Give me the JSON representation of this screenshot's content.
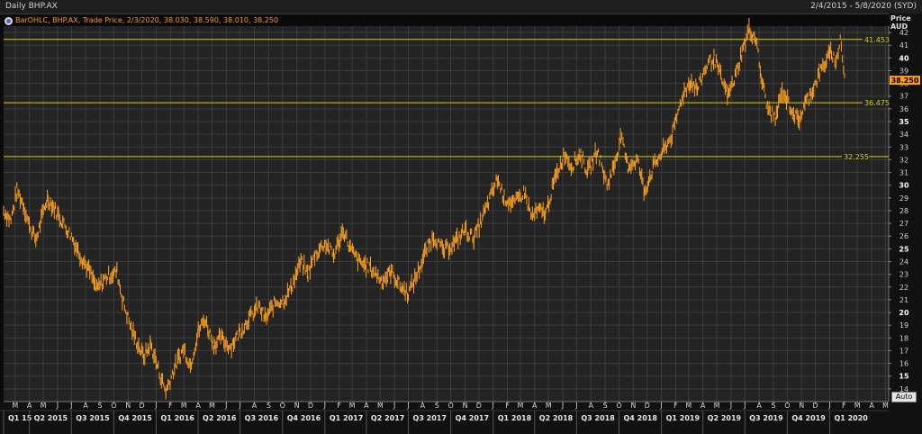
{
  "window": {
    "title": "Daily BHP.AX",
    "date_range": "2/4/2015 - 5/8/2020 (SYD)"
  },
  "legend": {
    "text": "BarOHLC, BHP.AX, Trade Price, 2/3/2020, 38.030, 38.590, 38.010, 38.250"
  },
  "axis": {
    "price_label": "Price",
    "currency_label": "AUD",
    "auto_button": "Auto"
  },
  "colors": {
    "background": "#232323",
    "grid": "#3c3c3c",
    "price_series": "#ffa21c",
    "hlines": "#d8d000",
    "current_price_box": "#ff9d17"
  },
  "chart_data": {
    "type": "bar",
    "subtype": "ohlc",
    "series_name": "BHP.AX",
    "ylabel": "Price AUD",
    "ylim": [
      13,
      42.5
    ],
    "yticks": [
      14,
      15,
      16,
      17,
      18,
      19,
      20,
      21,
      22,
      23,
      24,
      25,
      26,
      27,
      28,
      29,
      30,
      31,
      32,
      33,
      34,
      35,
      36,
      37,
      38,
      39,
      40,
      41,
      42
    ],
    "xlim": [
      "2015-02-04",
      "2020-05-08"
    ],
    "grid": true,
    "month_labels": [
      {
        "date": "2015-03-01",
        "label": "M"
      },
      {
        "date": "2015-04-01",
        "label": "A"
      },
      {
        "date": "2015-05-01",
        "label": "M"
      },
      {
        "date": "2015-06-01",
        "label": "J"
      },
      {
        "date": "2015-07-01",
        "label": "J"
      },
      {
        "date": "2015-08-01",
        "label": "A"
      },
      {
        "date": "2015-09-01",
        "label": "S"
      },
      {
        "date": "2015-10-01",
        "label": "O"
      },
      {
        "date": "2015-11-01",
        "label": "N"
      },
      {
        "date": "2015-12-01",
        "label": "D"
      },
      {
        "date": "2016-01-01",
        "label": "J"
      },
      {
        "date": "2016-02-01",
        "label": "F"
      },
      {
        "date": "2016-03-01",
        "label": "M"
      },
      {
        "date": "2016-04-01",
        "label": "A"
      },
      {
        "date": "2016-05-01",
        "label": "M"
      },
      {
        "date": "2016-06-01",
        "label": "J"
      },
      {
        "date": "2016-07-01",
        "label": "J"
      },
      {
        "date": "2016-08-01",
        "label": "A"
      },
      {
        "date": "2016-09-01",
        "label": "S"
      },
      {
        "date": "2016-10-01",
        "label": "O"
      },
      {
        "date": "2016-11-01",
        "label": "N"
      },
      {
        "date": "2016-12-01",
        "label": "D"
      },
      {
        "date": "2017-01-01",
        "label": "J"
      },
      {
        "date": "2017-02-01",
        "label": "F"
      },
      {
        "date": "2017-03-01",
        "label": "M"
      },
      {
        "date": "2017-04-01",
        "label": "A"
      },
      {
        "date": "2017-05-01",
        "label": "M"
      },
      {
        "date": "2017-06-01",
        "label": "J"
      },
      {
        "date": "2017-07-01",
        "label": "J"
      },
      {
        "date": "2017-08-01",
        "label": "A"
      },
      {
        "date": "2017-09-01",
        "label": "S"
      },
      {
        "date": "2017-10-01",
        "label": "O"
      },
      {
        "date": "2017-11-01",
        "label": "N"
      },
      {
        "date": "2017-12-01",
        "label": "D"
      },
      {
        "date": "2018-01-01",
        "label": "J"
      },
      {
        "date": "2018-02-01",
        "label": "F"
      },
      {
        "date": "2018-03-01",
        "label": "M"
      },
      {
        "date": "2018-04-01",
        "label": "A"
      },
      {
        "date": "2018-05-01",
        "label": "M"
      },
      {
        "date": "2018-06-01",
        "label": "J"
      },
      {
        "date": "2018-07-01",
        "label": "J"
      },
      {
        "date": "2018-08-01",
        "label": "A"
      },
      {
        "date": "2018-09-01",
        "label": "S"
      },
      {
        "date": "2018-10-01",
        "label": "O"
      },
      {
        "date": "2018-11-01",
        "label": "N"
      },
      {
        "date": "2018-12-01",
        "label": "D"
      },
      {
        "date": "2019-01-01",
        "label": "J"
      },
      {
        "date": "2019-02-01",
        "label": "F"
      },
      {
        "date": "2019-03-01",
        "label": "M"
      },
      {
        "date": "2019-04-01",
        "label": "A"
      },
      {
        "date": "2019-05-01",
        "label": "M"
      },
      {
        "date": "2019-06-01",
        "label": "J"
      },
      {
        "date": "2019-07-01",
        "label": "J"
      },
      {
        "date": "2019-08-01",
        "label": "A"
      },
      {
        "date": "2019-09-01",
        "label": "S"
      },
      {
        "date": "2019-10-01",
        "label": "O"
      },
      {
        "date": "2019-11-01",
        "label": "N"
      },
      {
        "date": "2019-12-01",
        "label": "D"
      },
      {
        "date": "2020-01-01",
        "label": "J"
      },
      {
        "date": "2020-02-01",
        "label": "F"
      },
      {
        "date": "2020-03-01",
        "label": "M"
      },
      {
        "date": "2020-04-01",
        "label": "A"
      },
      {
        "date": "2020-05-01",
        "label": "M"
      }
    ],
    "quarter_labels": [
      {
        "date": "2015-01-01",
        "label": "Q1 15"
      },
      {
        "date": "2015-04-01",
        "label": "Q2 2015"
      },
      {
        "date": "2015-07-01",
        "label": "Q3 2015"
      },
      {
        "date": "2015-10-01",
        "label": "Q4 2015"
      },
      {
        "date": "2016-01-01",
        "label": "Q1 2016"
      },
      {
        "date": "2016-04-01",
        "label": "Q2 2016"
      },
      {
        "date": "2016-07-01",
        "label": "Q3 2016"
      },
      {
        "date": "2016-10-01",
        "label": "Q4 2016"
      },
      {
        "date": "2017-01-01",
        "label": "Q1 2017"
      },
      {
        "date": "2017-04-01",
        "label": "Q2 2017"
      },
      {
        "date": "2017-07-01",
        "label": "Q3 2017"
      },
      {
        "date": "2017-10-01",
        "label": "Q4 2017"
      },
      {
        "date": "2018-01-01",
        "label": "Q1 2018"
      },
      {
        "date": "2018-04-01",
        "label": "Q2 2018"
      },
      {
        "date": "2018-07-01",
        "label": "Q3 2018"
      },
      {
        "date": "2018-10-01",
        "label": "Q4 2018"
      },
      {
        "date": "2019-01-01",
        "label": "Q1 2019"
      },
      {
        "date": "2019-04-01",
        "label": "Q2 2019"
      },
      {
        "date": "2019-07-01",
        "label": "Q3 2019"
      },
      {
        "date": "2019-10-01",
        "label": "Q4 2019"
      },
      {
        "date": "2020-01-01",
        "label": "Q1 2020"
      }
    ],
    "horizontal_lines": [
      {
        "value": 41.453,
        "label": "41.453"
      },
      {
        "value": 36.475,
        "label": "36.475"
      },
      {
        "value": 32.255,
        "label": "32.255"
      }
    ],
    "last_price": {
      "value": 38.25,
      "label": "38.250"
    },
    "price_path": [
      {
        "date": "2015-02-04",
        "price": 28.0
      },
      {
        "date": "2015-02-20",
        "price": 27.2
      },
      {
        "date": "2015-03-05",
        "price": 29.6
      },
      {
        "date": "2015-03-20",
        "price": 28.4
      },
      {
        "date": "2015-04-01",
        "price": 26.8
      },
      {
        "date": "2015-04-15",
        "price": 25.7
      },
      {
        "date": "2015-05-10",
        "price": 29.0
      },
      {
        "date": "2015-05-25",
        "price": 28.2
      },
      {
        "date": "2015-06-10",
        "price": 27.2
      },
      {
        "date": "2015-07-01",
        "price": 26.0
      },
      {
        "date": "2015-07-20",
        "price": 24.5
      },
      {
        "date": "2015-08-10",
        "price": 23.2
      },
      {
        "date": "2015-08-25",
        "price": 21.8
      },
      {
        "date": "2015-09-15",
        "price": 22.8
      },
      {
        "date": "2015-10-08",
        "price": 23.2
      },
      {
        "date": "2015-10-20",
        "price": 21.0
      },
      {
        "date": "2015-11-10",
        "price": 18.5
      },
      {
        "date": "2015-12-05",
        "price": 16.5
      },
      {
        "date": "2015-12-20",
        "price": 17.5
      },
      {
        "date": "2016-01-10",
        "price": 15.0
      },
      {
        "date": "2016-01-22",
        "price": 13.8
      },
      {
        "date": "2016-02-05",
        "price": 15.2
      },
      {
        "date": "2016-02-20",
        "price": 16.5
      },
      {
        "date": "2016-03-01",
        "price": 17.2
      },
      {
        "date": "2016-03-15",
        "price": 15.8
      },
      {
        "date": "2016-04-01",
        "price": 18.5
      },
      {
        "date": "2016-04-15",
        "price": 19.5
      },
      {
        "date": "2016-05-05",
        "price": 17.5
      },
      {
        "date": "2016-05-20",
        "price": 18.0
      },
      {
        "date": "2016-06-10",
        "price": 17.3
      },
      {
        "date": "2016-07-01",
        "price": 18.5
      },
      {
        "date": "2016-07-20",
        "price": 19.5
      },
      {
        "date": "2016-08-10",
        "price": 20.5
      },
      {
        "date": "2016-08-25",
        "price": 19.5
      },
      {
        "date": "2016-09-15",
        "price": 20.8
      },
      {
        "date": "2016-10-05",
        "price": 21.0
      },
      {
        "date": "2016-10-20",
        "price": 22.0
      },
      {
        "date": "2016-11-10",
        "price": 24.0
      },
      {
        "date": "2016-11-25",
        "price": 23.0
      },
      {
        "date": "2016-12-10",
        "price": 24.5
      },
      {
        "date": "2017-01-01",
        "price": 25.5
      },
      {
        "date": "2017-01-20",
        "price": 24.5
      },
      {
        "date": "2017-02-10",
        "price": 26.5
      },
      {
        "date": "2017-02-25",
        "price": 25.0
      },
      {
        "date": "2017-03-15",
        "price": 24.0
      },
      {
        "date": "2017-04-10",
        "price": 23.5
      },
      {
        "date": "2017-05-05",
        "price": 22.5
      },
      {
        "date": "2017-05-25",
        "price": 23.2
      },
      {
        "date": "2017-06-15",
        "price": 22.0
      },
      {
        "date": "2017-07-01",
        "price": 21.5
      },
      {
        "date": "2017-07-20",
        "price": 23.0
      },
      {
        "date": "2017-08-10",
        "price": 25.0
      },
      {
        "date": "2017-08-25",
        "price": 26.0
      },
      {
        "date": "2017-09-15",
        "price": 24.8
      },
      {
        "date": "2017-10-10",
        "price": 25.5
      },
      {
        "date": "2017-11-01",
        "price": 26.5
      },
      {
        "date": "2017-11-20",
        "price": 25.8
      },
      {
        "date": "2017-12-15",
        "price": 28.0
      },
      {
        "date": "2018-01-10",
        "price": 30.5
      },
      {
        "date": "2018-01-25",
        "price": 29.0
      },
      {
        "date": "2018-02-15",
        "price": 28.5
      },
      {
        "date": "2018-03-10",
        "price": 29.5
      },
      {
        "date": "2018-03-25",
        "price": 27.5
      },
      {
        "date": "2018-04-10",
        "price": 28.0
      },
      {
        "date": "2018-04-25",
        "price": 27.8
      },
      {
        "date": "2018-05-15",
        "price": 30.5
      },
      {
        "date": "2018-06-05",
        "price": 32.5
      },
      {
        "date": "2018-06-20",
        "price": 31.5
      },
      {
        "date": "2018-07-10",
        "price": 32.5
      },
      {
        "date": "2018-07-25",
        "price": 31.0
      },
      {
        "date": "2018-08-15",
        "price": 32.8
      },
      {
        "date": "2018-09-05",
        "price": 30.0
      },
      {
        "date": "2018-09-20",
        "price": 31.5
      },
      {
        "date": "2018-10-05",
        "price": 33.8
      },
      {
        "date": "2018-10-20",
        "price": 31.5
      },
      {
        "date": "2018-11-10",
        "price": 32.0
      },
      {
        "date": "2018-11-25",
        "price": 29.5
      },
      {
        "date": "2018-12-15",
        "price": 31.5
      },
      {
        "date": "2019-01-10",
        "price": 33.0
      },
      {
        "date": "2019-01-25",
        "price": 34.0
      },
      {
        "date": "2019-02-15",
        "price": 37.0
      },
      {
        "date": "2019-03-05",
        "price": 38.2
      },
      {
        "date": "2019-03-20",
        "price": 37.5
      },
      {
        "date": "2019-04-10",
        "price": 39.5
      },
      {
        "date": "2019-04-25",
        "price": 40.0
      },
      {
        "date": "2019-05-10",
        "price": 38.5
      },
      {
        "date": "2019-05-25",
        "price": 37.0
      },
      {
        "date": "2019-06-10",
        "price": 38.5
      },
      {
        "date": "2019-06-25",
        "price": 40.5
      },
      {
        "date": "2019-07-10",
        "price": 42.2
      },
      {
        "date": "2019-07-25",
        "price": 41.5
      },
      {
        "date": "2019-08-05",
        "price": 38.5
      },
      {
        "date": "2019-08-20",
        "price": 36.0
      },
      {
        "date": "2019-09-05",
        "price": 35.2
      },
      {
        "date": "2019-09-20",
        "price": 37.5
      },
      {
        "date": "2019-10-10",
        "price": 36.0
      },
      {
        "date": "2019-10-25",
        "price": 35.0
      },
      {
        "date": "2019-11-10",
        "price": 36.5
      },
      {
        "date": "2019-11-25",
        "price": 37.5
      },
      {
        "date": "2019-12-10",
        "price": 38.8
      },
      {
        "date": "2019-12-25",
        "price": 39.8
      },
      {
        "date": "2020-01-05",
        "price": 40.5
      },
      {
        "date": "2020-01-15",
        "price": 39.5
      },
      {
        "date": "2020-01-24",
        "price": 41.6
      },
      {
        "date": "2020-02-03",
        "price": 38.25
      }
    ]
  }
}
